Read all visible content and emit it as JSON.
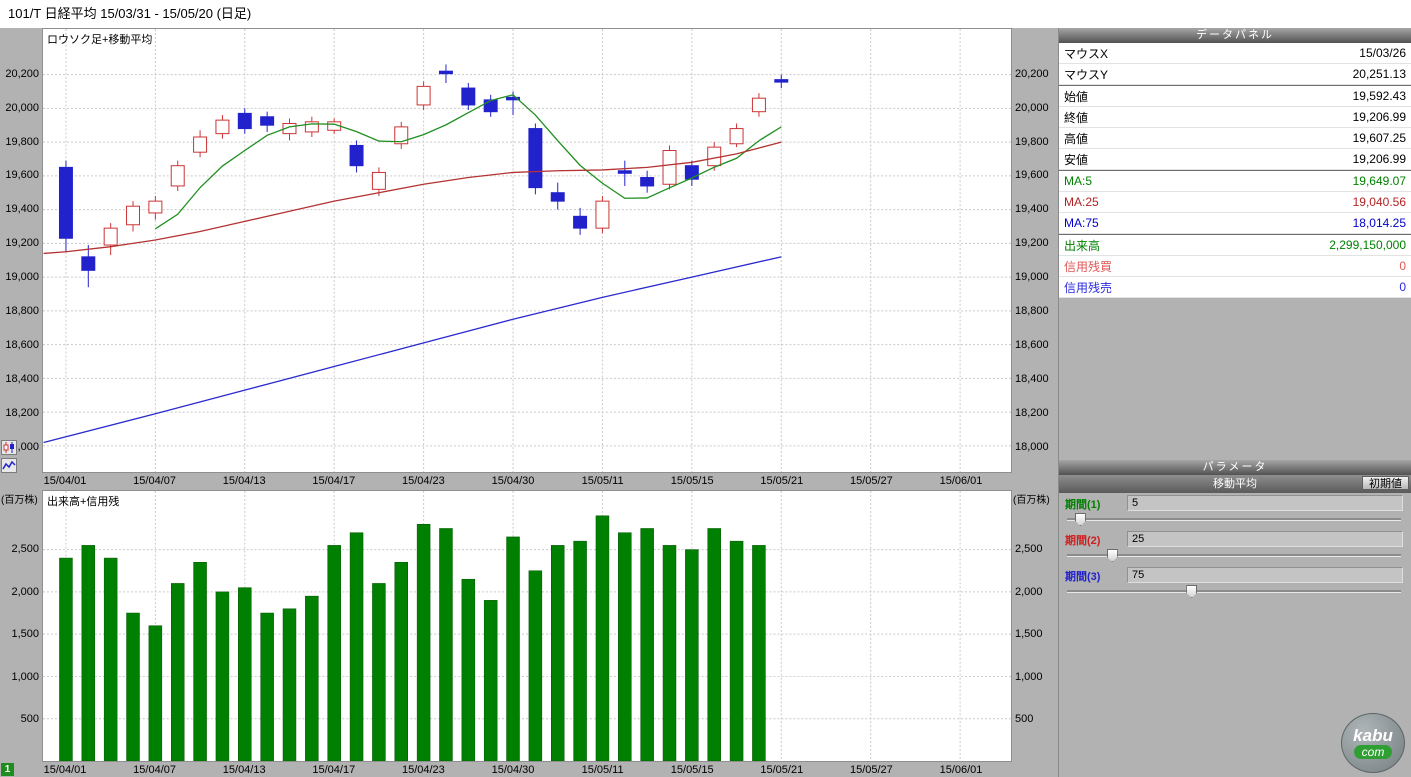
{
  "title_bar": {
    "title": "101/T 日経平均  15/03/31 - 15/05/20 (日足)"
  },
  "toolbar": {
    "page_indicator": "1"
  },
  "data_panel": {
    "title": "データパネル",
    "groups": [
      {
        "rows": [
          {
            "label": "マウスX",
            "value": "15/03/26",
            "color": "#000000"
          },
          {
            "label": "マウスY",
            "value": "20,251.13",
            "color": "#000000"
          }
        ]
      },
      {
        "rows": [
          {
            "label": "始値",
            "value": "19,592.43",
            "color": "#000000"
          },
          {
            "label": "終値",
            "value": "19,206.99",
            "color": "#000000"
          },
          {
            "label": "高値",
            "value": "19,607.25",
            "color": "#000000"
          },
          {
            "label": "安値",
            "value": "19,206.99",
            "color": "#000000"
          }
        ]
      },
      {
        "rows": [
          {
            "label": "MA:5",
            "value": "19,649.07",
            "color": "#008000"
          },
          {
            "label": "MA:25",
            "value": "19,040.56",
            "color": "#b22222"
          },
          {
            "label": "MA:75",
            "value": "18,014.25",
            "color": "#0000cc"
          }
        ]
      },
      {
        "rows": [
          {
            "label": "出来高",
            "value": "2,299,150,000",
            "color": "#008000"
          },
          {
            "label": "信用残買",
            "value": "0",
            "color": "#e05555"
          },
          {
            "label": "信用残売",
            "value": "0",
            "color": "#2a2ae0"
          }
        ]
      }
    ]
  },
  "parameter_panel": {
    "title": "パラメータ",
    "section_title": "移動平均",
    "reset_button": "初期値",
    "slider_max": 200,
    "params": [
      {
        "label": "期間(1)",
        "value": 5,
        "color": "#008000"
      },
      {
        "label": "期間(2)",
        "value": 25,
        "color": "#cc2222"
      },
      {
        "label": "期間(3)",
        "value": 75,
        "color": "#2222cc"
      }
    ]
  },
  "logo": {
    "top": "kabu",
    "bottom": "com"
  },
  "chart_data": [
    {
      "type": "candlestick",
      "title": "ロウソク足+移動平均",
      "ylim": [
        17845,
        20470
      ],
      "y_ticks": [
        20200,
        20000,
        19800,
        19600,
        19400,
        19200,
        19000,
        18800,
        18600,
        18400,
        18200,
        18000
      ],
      "x_ticks": [
        {
          "index": 0,
          "label": "15/04/01"
        },
        {
          "index": 4,
          "label": "15/04/07"
        },
        {
          "index": 8,
          "label": "15/04/13"
        },
        {
          "index": 12,
          "label": "15/04/17"
        },
        {
          "index": 16,
          "label": "15/04/23"
        },
        {
          "index": 20,
          "label": "15/04/30"
        },
        {
          "index": 24,
          "label": "15/05/11"
        },
        {
          "index": 28,
          "label": "15/05/15"
        },
        {
          "index": 32,
          "label": "15/05/21"
        },
        {
          "index": 36,
          "label": "15/05/27"
        },
        {
          "index": 40,
          "label": "15/06/01"
        }
      ],
      "up_color": "#cc3333",
      "down_color": "#2222cc",
      "candles_ohlc": [
        [
          19650,
          19690,
          19150,
          19230
        ],
        [
          19120,
          19190,
          18940,
          19040
        ],
        [
          19190,
          19320,
          19130,
          19290
        ],
        [
          19310,
          19450,
          19270,
          19420
        ],
        [
          19380,
          19480,
          19340,
          19450
        ],
        [
          19540,
          19690,
          19510,
          19660
        ],
        [
          19740,
          19870,
          19710,
          19830
        ],
        [
          19850,
          19960,
          19820,
          19930
        ],
        [
          19970,
          20000,
          19850,
          19880
        ],
        [
          19950,
          19980,
          19860,
          19900
        ],
        [
          19850,
          19940,
          19810,
          19910
        ],
        [
          19860,
          19950,
          19830,
          19920
        ],
        [
          19870,
          19940,
          19850,
          19920
        ],
        [
          19780,
          19810,
          19620,
          19660
        ],
        [
          19520,
          19650,
          19480,
          19620
        ],
        [
          19790,
          19920,
          19760,
          19890
        ],
        [
          20020,
          20160,
          19990,
          20130
        ],
        [
          20220,
          20260,
          20150,
          20210
        ],
        [
          20120,
          20150,
          19990,
          20020
        ],
        [
          20050,
          20080,
          19950,
          19980
        ],
        [
          20065,
          20100,
          19960,
          20055
        ],
        [
          19880,
          19910,
          19490,
          19530
        ],
        [
          19500,
          19560,
          19400,
          19450
        ],
        [
          19360,
          19410,
          19250,
          19290
        ],
        [
          19290,
          19480,
          19260,
          19450
        ],
        [
          19630,
          19690,
          19540,
          19615
        ],
        [
          19590,
          19630,
          19500,
          19540
        ],
        [
          19550,
          19780,
          19520,
          19750
        ],
        [
          19660,
          19690,
          19540,
          19580
        ],
        [
          19660,
          19800,
          19630,
          19770
        ],
        [
          19790,
          19910,
          19770,
          19880
        ],
        [
          19980,
          20090,
          19950,
          20060
        ],
        [
          20170,
          20200,
          20120,
          20160
        ]
      ],
      "series": [
        {
          "name": "MA5",
          "color": "#1f8f1f",
          "points": [
            [
              4,
              19286
            ],
            [
              5,
              19372
            ],
            [
              6,
              19530
            ],
            [
              7,
              19658
            ],
            [
              8,
              19750
            ],
            [
              9,
              19840
            ],
            [
              10,
              19890
            ],
            [
              11,
              19908
            ],
            [
              12,
              19906
            ],
            [
              13,
              19862
            ],
            [
              14,
              19806
            ],
            [
              15,
              19802
            ],
            [
              16,
              19844
            ],
            [
              17,
              19902
            ],
            [
              18,
              19974
            ],
            [
              19,
              20046
            ],
            [
              20,
              20080
            ],
            [
              21,
              19960
            ],
            [
              22,
              19808
            ],
            [
              23,
              19662
            ],
            [
              24,
              19556
            ],
            [
              25,
              19467
            ],
            [
              26,
              19469
            ],
            [
              27,
              19529
            ],
            [
              28,
              19587
            ],
            [
              29,
              19651
            ],
            [
              30,
              19704
            ],
            [
              31,
              19808
            ],
            [
              32,
              19890
            ]
          ]
        },
        {
          "name": "MA25",
          "color": "#b43232",
          "points": [
            [
              -1,
              19140
            ],
            [
              0,
              19150
            ],
            [
              2,
              19180
            ],
            [
              4,
              19220
            ],
            [
              6,
              19270
            ],
            [
              8,
              19330
            ],
            [
              10,
              19390
            ],
            [
              12,
              19450
            ],
            [
              14,
              19500
            ],
            [
              16,
              19550
            ],
            [
              18,
              19590
            ],
            [
              20,
              19620
            ],
            [
              22,
              19630
            ],
            [
              24,
              19635
            ],
            [
              26,
              19650
            ],
            [
              28,
              19680
            ],
            [
              30,
              19730
            ],
            [
              32,
              19800
            ]
          ]
        },
        {
          "name": "MA75",
          "color": "#2a2ad0",
          "points": [
            [
              -1,
              18020
            ],
            [
              4,
              18190
            ],
            [
              8,
              18330
            ],
            [
              12,
              18470
            ],
            [
              16,
              18610
            ],
            [
              20,
              18750
            ],
            [
              24,
              18880
            ],
            [
              28,
              19000
            ],
            [
              32,
              19120
            ]
          ]
        }
      ]
    },
    {
      "type": "bar",
      "title": "出来高+信用残",
      "unit_label": "(百万株)",
      "ylim": [
        0,
        3193
      ],
      "y_ticks": [
        2500,
        2000,
        1500,
        1000,
        500
      ],
      "bar_color": "#008000",
      "values": [
        2400,
        2550,
        2400,
        1750,
        1600,
        2100,
        2350,
        2000,
        2050,
        1750,
        1800,
        1950,
        2550,
        2700,
        2100,
        2350,
        2800,
        2750,
        2150,
        1900,
        2650,
        2250,
        2550,
        2600,
        2900,
        2700,
        2750,
        2550,
        2500,
        2750,
        2600,
        2550,
        0
      ]
    }
  ]
}
